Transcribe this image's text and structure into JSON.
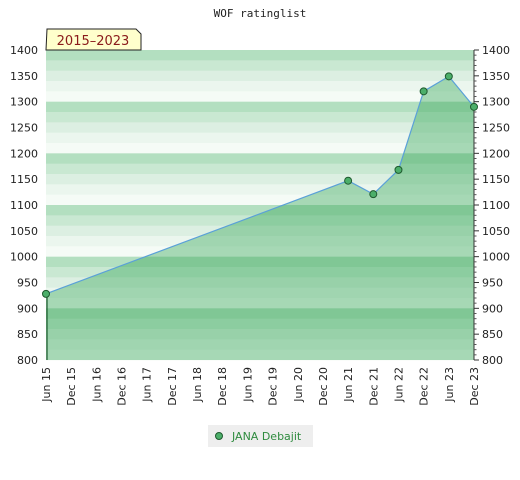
{
  "chart_data": {
    "type": "area",
    "title": "WOF ratinglist",
    "period_label": "2015–2023",
    "xlabel": "",
    "ylabel": "",
    "ylim": [
      800,
      1400
    ],
    "yticks": [
      800,
      850,
      900,
      950,
      1000,
      1050,
      1100,
      1150,
      1200,
      1250,
      1300,
      1350,
      1400
    ],
    "x_tick_labels": [
      "Jun 15",
      "Dec 15",
      "Jun 16",
      "Dec 16",
      "Jun 17",
      "Dec 17",
      "Jun 18",
      "Dec 18",
      "Jun 19",
      "Dec 19",
      "Jun 20",
      "Dec 20",
      "Jun 21",
      "Dec 21",
      "Jun 22",
      "Dec 22",
      "Jun 23",
      "Dec 23"
    ],
    "x": [
      "Jun 15",
      "Jun 21",
      "Dec 21",
      "Jun 22",
      "Dec 22",
      "Jun 23",
      "Dec 23"
    ],
    "series": [
      {
        "name": "JANA Debajit",
        "values": [
          928,
          1147,
          1121,
          1168,
          1320,
          1349,
          1290
        ]
      }
    ],
    "legend_position": "bottom-center",
    "grid": true,
    "colors": {
      "line": "#5aa0d8",
      "fill": "#3aa85a",
      "marker": "#4caf6a",
      "marker_edge": "#1e5a2e",
      "band_a": "#b3dfc0",
      "band_b": "#f3f9f4",
      "period_box": "#ffffcc",
      "legend_bg": "#eeeeee"
    }
  }
}
